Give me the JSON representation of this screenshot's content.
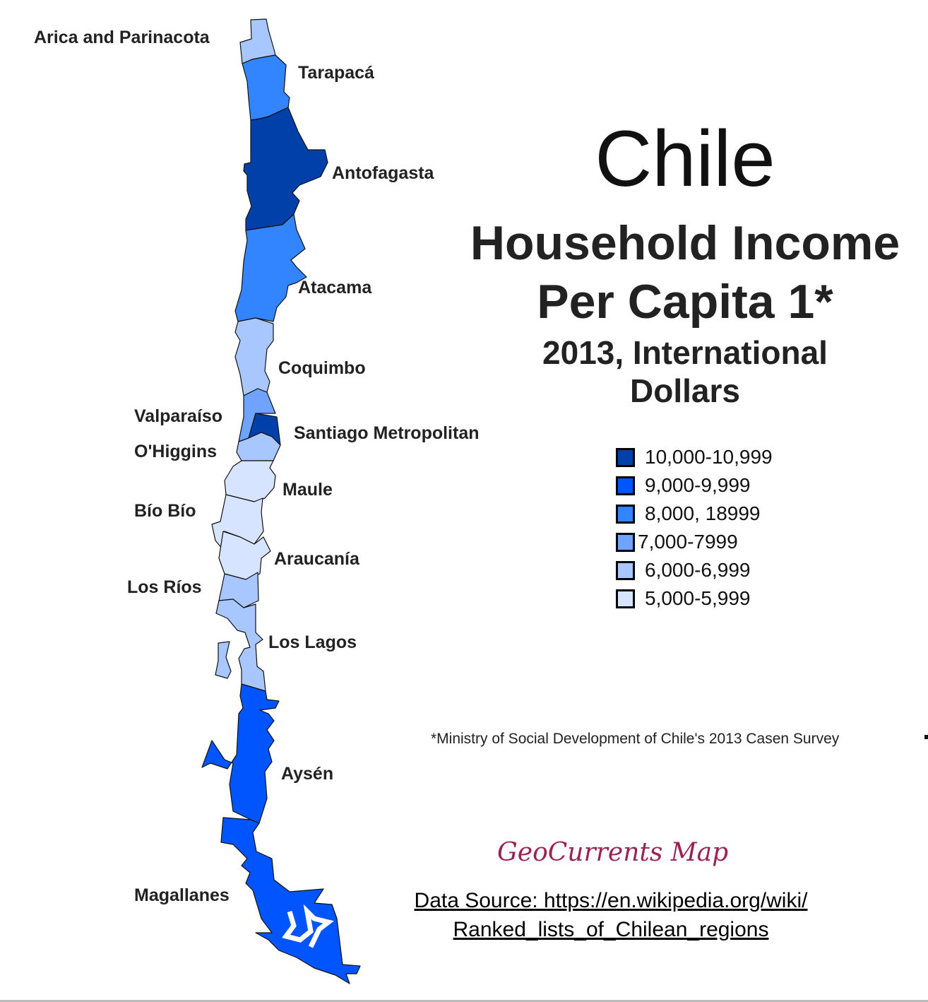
{
  "title": "Chile",
  "subtitle_line1": "Household Income",
  "subtitle_line2": "Per Capita 1*",
  "subtitle_line3": "2013, International Dollars",
  "legend": [
    {
      "label": "10,000-10,999",
      "color": "#0040a8"
    },
    {
      "label": "9,000-9,999",
      "color": "#0055ff"
    },
    {
      "label": "8,000, 18999",
      "color": "#3385ff"
    },
    {
      "label": "7,000-7999",
      "color": "#6fa3ff"
    },
    {
      "label": "6,000-6,999",
      "color": "#a8c6ff"
    },
    {
      "label": "5,000-5,999",
      "color": "#d6e4ff"
    }
  ],
  "regions": [
    {
      "name": "Arica and Parinacota",
      "bracket": "6,000-6,999"
    },
    {
      "name": "Tarapacá",
      "bracket": "8,000, 18999"
    },
    {
      "name": "Antofagasta",
      "bracket": "10,000-10,999"
    },
    {
      "name": "Atacama",
      "bracket": "8,000, 18999"
    },
    {
      "name": "Coquimbo",
      "bracket": "6,000-6,999"
    },
    {
      "name": "Valparaíso",
      "bracket": "7,000-7999"
    },
    {
      "name": "Santiago Metropolitan",
      "bracket": "10,000-10,999"
    },
    {
      "name": "O'Higgins",
      "bracket": "6,000-6,999"
    },
    {
      "name": "Maule",
      "bracket": "5,000-5,999"
    },
    {
      "name": "Bío Bío",
      "bracket": "5,000-5,999"
    },
    {
      "name": "Araucanía",
      "bracket": "5,000-5,999"
    },
    {
      "name": "Los Ríos",
      "bracket": "6,000-6,999"
    },
    {
      "name": "Los Lagos",
      "bracket": "6,000-6,999"
    },
    {
      "name": "Aysén",
      "bracket": "9,000-9,999"
    },
    {
      "name": "Magallanes",
      "bracket": "9,000-9,999"
    }
  ],
  "footnote": "*Ministry of Social Development of Chile's 2013 Casen Survey",
  "brand": "GeoCurrents Map",
  "source_line1": "Data Source: https://en.wikipedia.org/wiki/",
  "source_line2": "Ranked_lists_of_Chilean_regions"
}
